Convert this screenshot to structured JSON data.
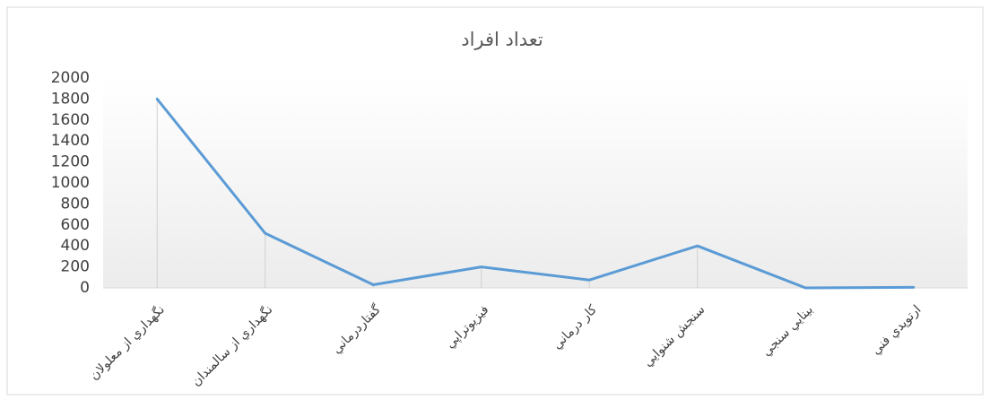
{
  "chart_data": {
    "type": "line",
    "title": "تعداد افراد",
    "categories": [
      "نگهداري از معلولان",
      "نگهداري از سالمندان",
      "گفتاردرماني",
      "فيزيوتراپي",
      "كار درماني",
      "سنجش شنوايي",
      "بينايي سنجي",
      "ارتوپدي فني"
    ],
    "values": [
      1800,
      520,
      30,
      200,
      75,
      400,
      0,
      5
    ],
    "color": "#5b9bd5",
    "ylim": [
      0,
      2000
    ],
    "yticks": [
      0,
      200,
      400,
      600,
      800,
      1000,
      1200,
      1400,
      1600,
      1800,
      2000
    ],
    "drop_lines": true
  }
}
